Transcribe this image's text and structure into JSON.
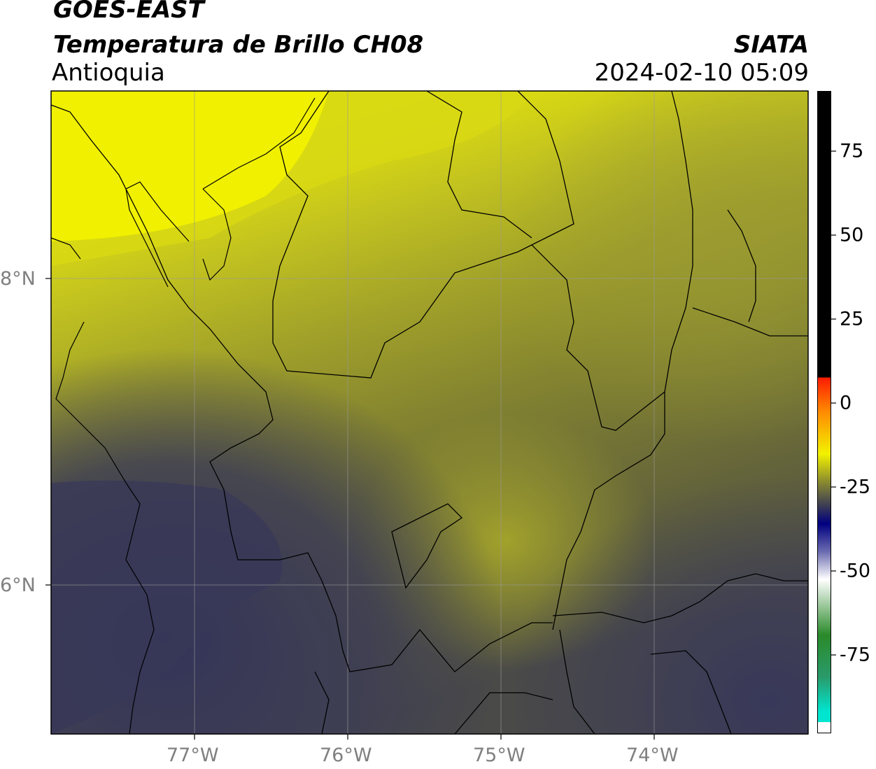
{
  "header": {
    "satellite": "GOES-EAST",
    "product": "Temperatura de Brillo CH08",
    "region": "Antioquia",
    "agency": "SIATA",
    "timestamp": "2024-02-10 05:09"
  },
  "map": {
    "lat_ticks": [
      "8°N",
      "6°N"
    ],
    "lon_ticks": [
      "77°W",
      "76°W",
      "75°W",
      "74°W"
    ],
    "lon_range": [
      -77.93,
      -73.0
    ],
    "lat_range": [
      5.2,
      9.2
    ],
    "gridlines": true
  },
  "colorbar": {
    "ticks": [
      "75",
      "50",
      "25",
      "0",
      "-25",
      "-50",
      "-75"
    ],
    "tick_values": [
      75,
      50,
      25,
      0,
      -25,
      -50,
      -75
    ],
    "range": [
      -92,
      92
    ],
    "colors": {
      "warm": "#000000",
      "red": "#ff1a00",
      "orange": "#ff8c00",
      "yellow": "#f2f200",
      "olive": "#8a8a30",
      "slate": "#3a3a55",
      "navy": "#000080",
      "white": "#ffffff",
      "green": "#2a8a2a",
      "teal": "#00e5d0"
    }
  }
}
